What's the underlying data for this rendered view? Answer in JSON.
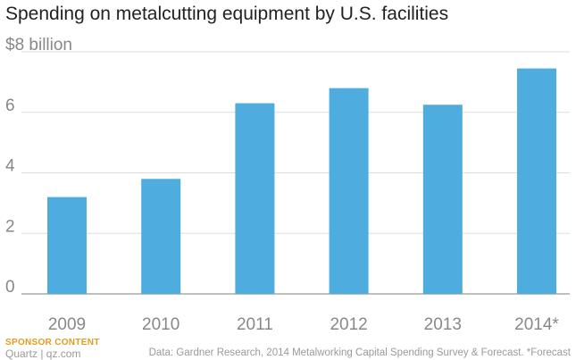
{
  "chart_data": {
    "type": "bar",
    "title": "Spending on metalcutting equipment by U.S. facilities",
    "categories": [
      "2009",
      "2010",
      "2011",
      "2012",
      "2013",
      "2014*"
    ],
    "values": [
      3.2,
      3.8,
      6.3,
      6.8,
      6.25,
      7.45
    ],
    "xlabel": "",
    "ylabel": "",
    "ylim": [
      0,
      8
    ],
    "yticks": [
      0,
      2,
      4,
      6
    ],
    "top_tick_label": "$8 billion",
    "grid": true,
    "bar_color": "#4eacde"
  },
  "footer": {
    "sponsor": "SPONSOR CONTENT",
    "brand": "Quartz | qz.com",
    "source": "Data: Gardner Research, 2014 Metalworking Capital Spending Survey & Forecast. *Forecast"
  },
  "colors": {
    "grid": "#dddddd",
    "baseline": "#aaaaaa",
    "tick_text": "#888888",
    "sponsor": "#e69a1e"
  }
}
